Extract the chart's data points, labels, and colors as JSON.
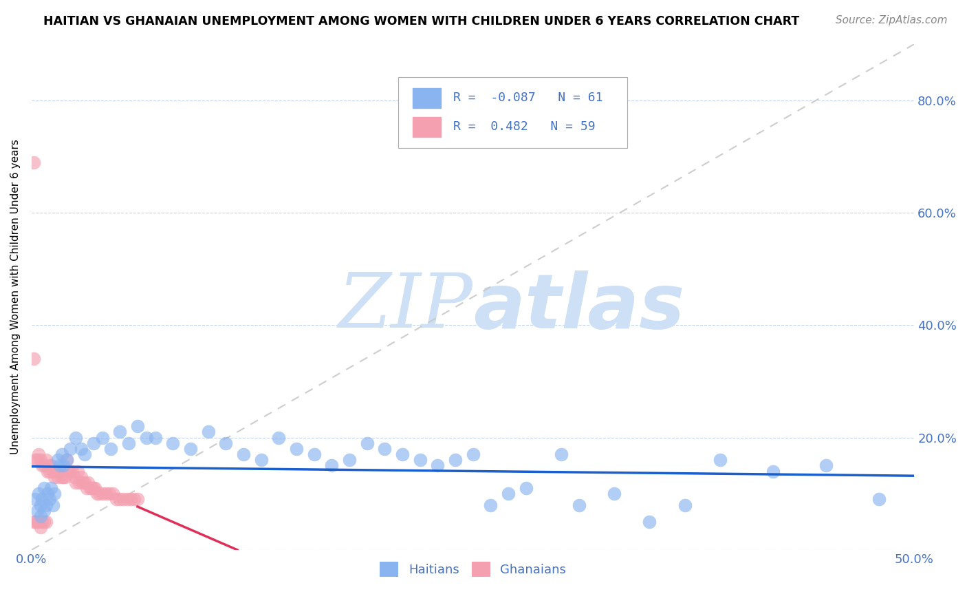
{
  "title": "HAITIAN VS GHANAIAN UNEMPLOYMENT AMONG WOMEN WITH CHILDREN UNDER 6 YEARS CORRELATION CHART",
  "source": "Source: ZipAtlas.com",
  "ylabel": "Unemployment Among Women with Children Under 6 years",
  "xlim": [
    0.0,
    0.5
  ],
  "ylim": [
    0.0,
    0.9
  ],
  "xticks": [
    0.0,
    0.1,
    0.2,
    0.3,
    0.4,
    0.5
  ],
  "yticks": [
    0.0,
    0.2,
    0.4,
    0.6,
    0.8
  ],
  "xticklabels_show": [
    "0.0%",
    "",
    "",
    "",
    "",
    "50.0%"
  ],
  "yticklabels_right": [
    "",
    "20.0%",
    "40.0%",
    "60.0%",
    "80.0%"
  ],
  "haitians_color": "#8ab4f0",
  "ghanaians_color": "#f4a0b0",
  "haitians_line_color": "#1a5fcc",
  "ghanaians_line_color": "#e0305a",
  "diagonal_color": "#c8c8c8",
  "R_haitians": -0.087,
  "N_haitians": 61,
  "R_ghanaians": 0.482,
  "N_ghanaians": 59,
  "watermark_zip": "ZIP",
  "watermark_atlas": "atlas",
  "watermark_color": "#cde0f5",
  "haitians_x": [
    0.002,
    0.003,
    0.004,
    0.005,
    0.005,
    0.006,
    0.007,
    0.007,
    0.008,
    0.009,
    0.01,
    0.011,
    0.012,
    0.013,
    0.015,
    0.016,
    0.017,
    0.018,
    0.02,
    0.022,
    0.025,
    0.028,
    0.03,
    0.035,
    0.04,
    0.045,
    0.05,
    0.055,
    0.06,
    0.065,
    0.07,
    0.08,
    0.09,
    0.1,
    0.11,
    0.12,
    0.13,
    0.14,
    0.15,
    0.16,
    0.17,
    0.18,
    0.19,
    0.2,
    0.21,
    0.22,
    0.23,
    0.24,
    0.25,
    0.26,
    0.27,
    0.28,
    0.3,
    0.31,
    0.33,
    0.35,
    0.37,
    0.39,
    0.42,
    0.45,
    0.48
  ],
  "haitians_y": [
    0.09,
    0.07,
    0.1,
    0.08,
    0.06,
    0.09,
    0.07,
    0.11,
    0.08,
    0.1,
    0.09,
    0.11,
    0.08,
    0.1,
    0.16,
    0.15,
    0.17,
    0.15,
    0.16,
    0.18,
    0.2,
    0.18,
    0.17,
    0.19,
    0.2,
    0.18,
    0.21,
    0.19,
    0.22,
    0.2,
    0.2,
    0.19,
    0.18,
    0.21,
    0.19,
    0.17,
    0.16,
    0.2,
    0.18,
    0.17,
    0.15,
    0.16,
    0.19,
    0.18,
    0.17,
    0.16,
    0.15,
    0.16,
    0.17,
    0.08,
    0.1,
    0.11,
    0.17,
    0.08,
    0.1,
    0.05,
    0.08,
    0.16,
    0.14,
    0.15,
    0.09
  ],
  "ghanaians_x": [
    0.001,
    0.001,
    0.002,
    0.002,
    0.003,
    0.003,
    0.004,
    0.004,
    0.005,
    0.005,
    0.006,
    0.006,
    0.007,
    0.007,
    0.008,
    0.008,
    0.009,
    0.01,
    0.01,
    0.011,
    0.012,
    0.013,
    0.014,
    0.015,
    0.016,
    0.017,
    0.018,
    0.019,
    0.02,
    0.021,
    0.022,
    0.023,
    0.024,
    0.025,
    0.026,
    0.027,
    0.028,
    0.029,
    0.03,
    0.031,
    0.032,
    0.033,
    0.034,
    0.035,
    0.036,
    0.037,
    0.038,
    0.04,
    0.042,
    0.044,
    0.046,
    0.048,
    0.05,
    0.052,
    0.054,
    0.056,
    0.058,
    0.06,
    0.001
  ],
  "ghanaians_y": [
    0.05,
    0.34,
    0.05,
    0.16,
    0.05,
    0.16,
    0.05,
    0.17,
    0.04,
    0.16,
    0.05,
    0.15,
    0.05,
    0.15,
    0.05,
    0.16,
    0.14,
    0.15,
    0.14,
    0.15,
    0.14,
    0.13,
    0.14,
    0.13,
    0.14,
    0.13,
    0.13,
    0.13,
    0.16,
    0.14,
    0.14,
    0.14,
    0.13,
    0.12,
    0.14,
    0.12,
    0.13,
    0.12,
    0.12,
    0.11,
    0.12,
    0.11,
    0.11,
    0.11,
    0.11,
    0.1,
    0.1,
    0.1,
    0.1,
    0.1,
    0.1,
    0.09,
    0.09,
    0.09,
    0.09,
    0.09,
    0.09,
    0.09,
    0.69
  ]
}
